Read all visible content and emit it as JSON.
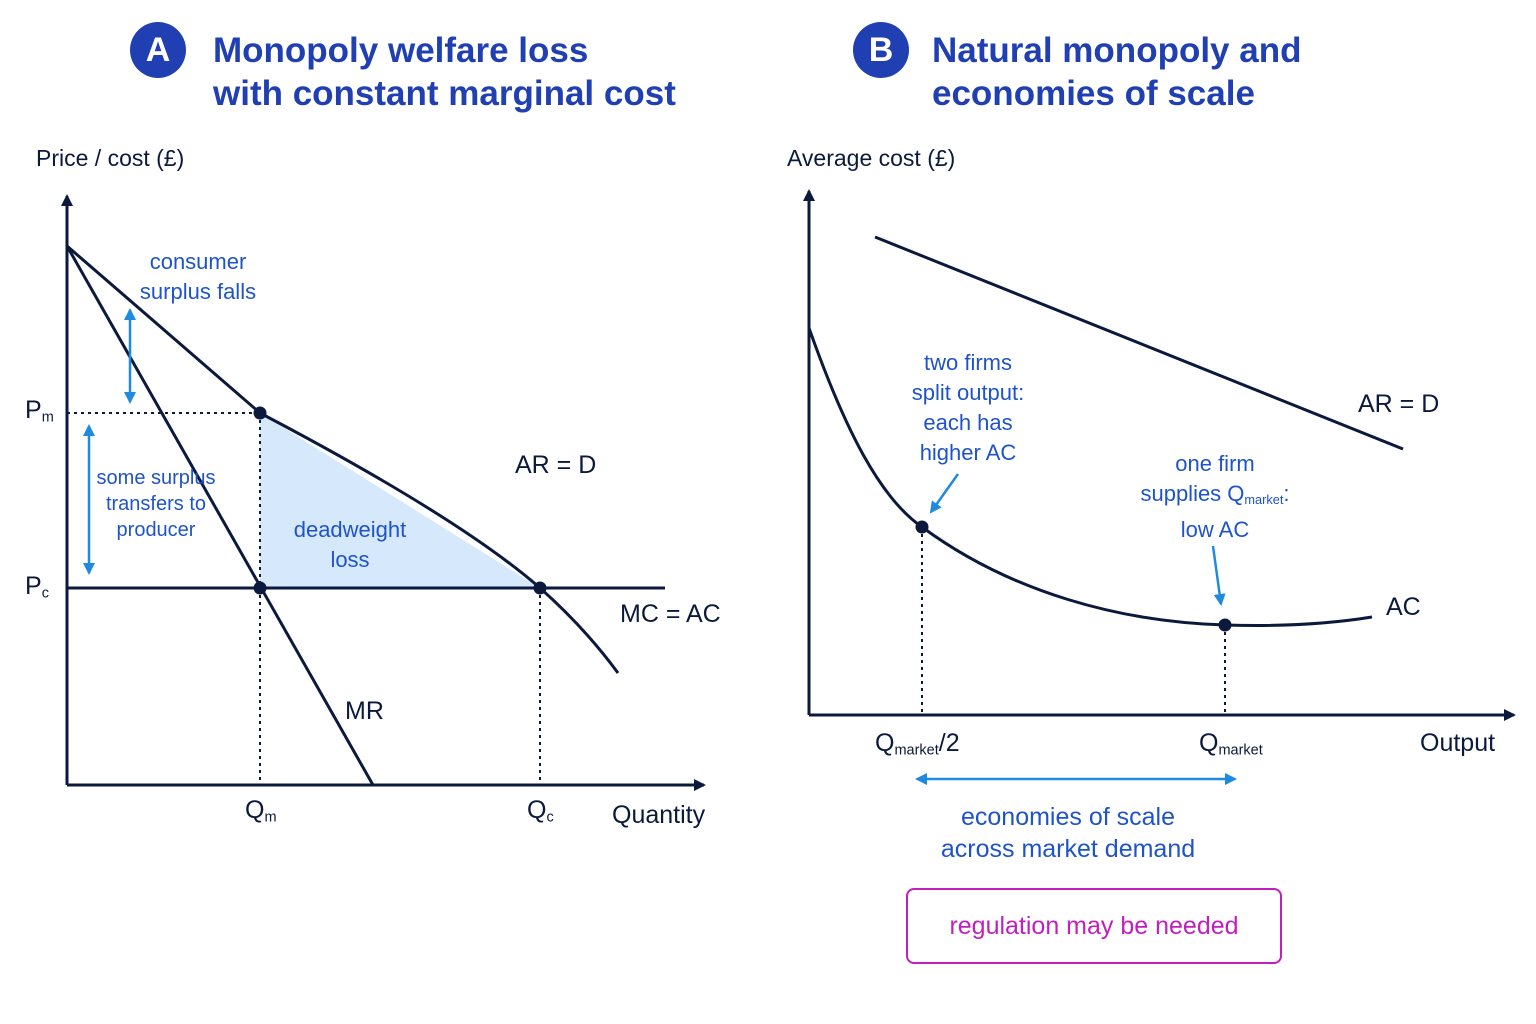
{
  "panel_a": {
    "badge": "A",
    "title_line1": "Monopoly welfare loss",
    "title_line2": "with constant marginal cost",
    "y_axis_title": "Price / cost (£)",
    "x_axis_title": "Quantity",
    "price_labels": {
      "pm_base": "P",
      "pm_sub": "m",
      "pc_base": "P",
      "pc_sub": "c"
    },
    "qty_labels": {
      "qm_base": "Q",
      "qm_sub": "m",
      "qc_base": "Q",
      "qc_sub": "c"
    },
    "curve_labels": {
      "demand": "AR = D",
      "mc": "MC = AC",
      "mr": "MR"
    },
    "notes": {
      "consumer_line1": "consumer",
      "consumer_line2": "surplus falls",
      "transfer_line1": "some surplus",
      "transfer_line2": "transfers to",
      "transfer_line3": "producer",
      "dwl_line1": "deadweight",
      "dwl_line2": "loss"
    }
  },
  "panel_b": {
    "badge": "B",
    "title_line1": "Natural monopoly and",
    "title_line2": "economies of scale",
    "y_axis_title": "Average cost (£)",
    "x_axis_title": "Output",
    "curve_labels": {
      "demand": "AR = D",
      "ac": "AC"
    },
    "qty_labels": {
      "half_base": "Q",
      "half_sub": "market",
      "half_suffix": "/2",
      "full_base": "Q",
      "full_sub": "market"
    },
    "notes": {
      "two_line1": "two firms",
      "two_line2": "split output:",
      "two_line3": "each has",
      "two_line4": "higher AC",
      "one_line1": "one firm",
      "one_line2_pre": "supplies Q",
      "one_line2_sub": "market",
      "one_line2_post": ":",
      "one_line3": "low AC",
      "scale_line1": "economies of scale",
      "scale_line2": "across market demand"
    },
    "regulation": "regulation may be needed"
  },
  "colors": {
    "title": "#1f3fb2",
    "curve": "#0b1a3c",
    "annotation": "#1f54c8",
    "arrow": "#1e8ae0",
    "dwl_fill": "#d6e8fb",
    "regulation": "#c21fbf"
  }
}
